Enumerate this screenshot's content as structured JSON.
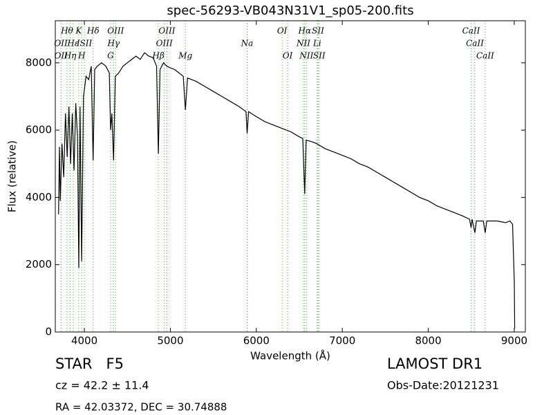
{
  "chart_data": {
    "type": "line",
    "title": "spec-56293-VB043N31V1_sp05-200.fits",
    "xlabel": "Wavelength (Å)",
    "ylabel": "Flux (relative)",
    "color": "#000000",
    "line_color": "#33bb33",
    "xlim": [
      3662,
      9129
    ],
    "ylim": [
      0,
      9250
    ],
    "xticks": [
      4000,
      5000,
      6000,
      7000,
      8000,
      9000
    ],
    "yticks": [
      0,
      2000,
      4000,
      6000,
      8000
    ],
    "x": [
      3700,
      3710,
      3720,
      3740,
      3760,
      3780,
      3800,
      3820,
      3840,
      3860,
      3880,
      3900,
      3920,
      3935,
      3950,
      3968,
      3990,
      4020,
      4050,
      4080,
      4102,
      4120,
      4150,
      4200,
      4250,
      4290,
      4305,
      4320,
      4340,
      4360,
      4400,
      4450,
      4500,
      4550,
      4600,
      4650,
      4700,
      4750,
      4800,
      4840,
      4861,
      4880,
      4920,
      4960,
      5000,
      5050,
      5100,
      5150,
      5175,
      5200,
      5300,
      5400,
      5500,
      5600,
      5700,
      5800,
      5880,
      5893,
      5910,
      6000,
      6100,
      6200,
      6300,
      6400,
      6500,
      6540,
      6563,
      6580,
      6650,
      6700,
      6800,
      6900,
      7000,
      7100,
      7200,
      7300,
      7400,
      7500,
      7600,
      7700,
      7800,
      7900,
      8000,
      8100,
      8200,
      8300,
      8400,
      8480,
      8498,
      8510,
      8542,
      8560,
      8640,
      8662,
      8680,
      8800,
      8900,
      8950,
      8980,
      9000,
      9005
    ],
    "values": [
      3500,
      5500,
      3900,
      5600,
      4600,
      6500,
      5200,
      6700,
      5000,
      6500,
      4800,
      6800,
      5800,
      1900,
      6700,
      2100,
      7000,
      7600,
      7500,
      7900,
      5100,
      7800,
      7900,
      8000,
      7900,
      7700,
      6000,
      6500,
      5100,
      7600,
      7700,
      7900,
      8000,
      8100,
      8200,
      8100,
      8300,
      8200,
      8150,
      7900,
      5300,
      7800,
      8000,
      7900,
      7850,
      7800,
      7700,
      7600,
      6600,
      7550,
      7450,
      7300,
      7150,
      7000,
      6850,
      6700,
      6550,
      5900,
      6550,
      6400,
      6250,
      6150,
      6050,
      5950,
      5800,
      5750,
      4100,
      5700,
      5650,
      5600,
      5450,
      5350,
      5250,
      5150,
      5000,
      4900,
      4750,
      4600,
      4450,
      4300,
      4150,
      4000,
      3900,
      3750,
      3650,
      3550,
      3450,
      3350,
      3100,
      3350,
      2950,
      3300,
      3300,
      2950,
      3300,
      3300,
      3250,
      3300,
      3200,
      1500,
      100
    ],
    "spectral_lines": [
      [
        {
          "label": "Hθ",
          "x": 3798
        },
        {
          "label": "K",
          "x": 3934
        },
        {
          "label": "Hδ",
          "x": 4102
        },
        {
          "label": "OIII",
          "x": 4364
        },
        {
          "label": "OIII",
          "x": 4960
        },
        {
          "label": "OI",
          "x": 6300
        },
        {
          "label": "Hα",
          "x": 6563
        },
        {
          "label": "SII",
          "x": 6717
        },
        {
          "label": "CaII",
          "x": 8498
        }
      ],
      [
        {
          "label": "OII",
          "x": 3727
        },
        {
          "label": "Hε",
          "x": 3870
        },
        {
          "label": "ISII",
          "x": 4000
        },
        {
          "label": "Hγ",
          "x": 4340
        },
        {
          "label": "OIII",
          "x": 4930
        },
        {
          "label": "Na",
          "x": 5893
        },
        {
          "label": "NII",
          "x": 6548
        },
        {
          "label": "Li",
          "x": 6708
        },
        {
          "label": "CaII",
          "x": 8542
        }
      ],
      [
        {
          "label": "OII",
          "x": 3729
        },
        {
          "label": "Hη",
          "x": 3835
        },
        {
          "label": "H",
          "x": 3969
        },
        {
          "label": "G",
          "x": 4305
        },
        {
          "label": "Hβ",
          "x": 4861
        },
        {
          "label": "Mg",
          "x": 5175
        },
        {
          "label": "OI",
          "x": 6364
        },
        {
          "label": "NII",
          "x": 6583
        },
        {
          "label": "SII",
          "x": 6731
        },
        {
          "label": "CaII",
          "x": 8662
        }
      ]
    ],
    "object_class": "STAR   F5",
    "redshift": "cz = 42.2 ± 11.4",
    "coordinates": "RA = 42.03372, DEC = 30.74888",
    "survey": "LAMOST DR1",
    "obs_date": "Obs-Date:20121231"
  }
}
